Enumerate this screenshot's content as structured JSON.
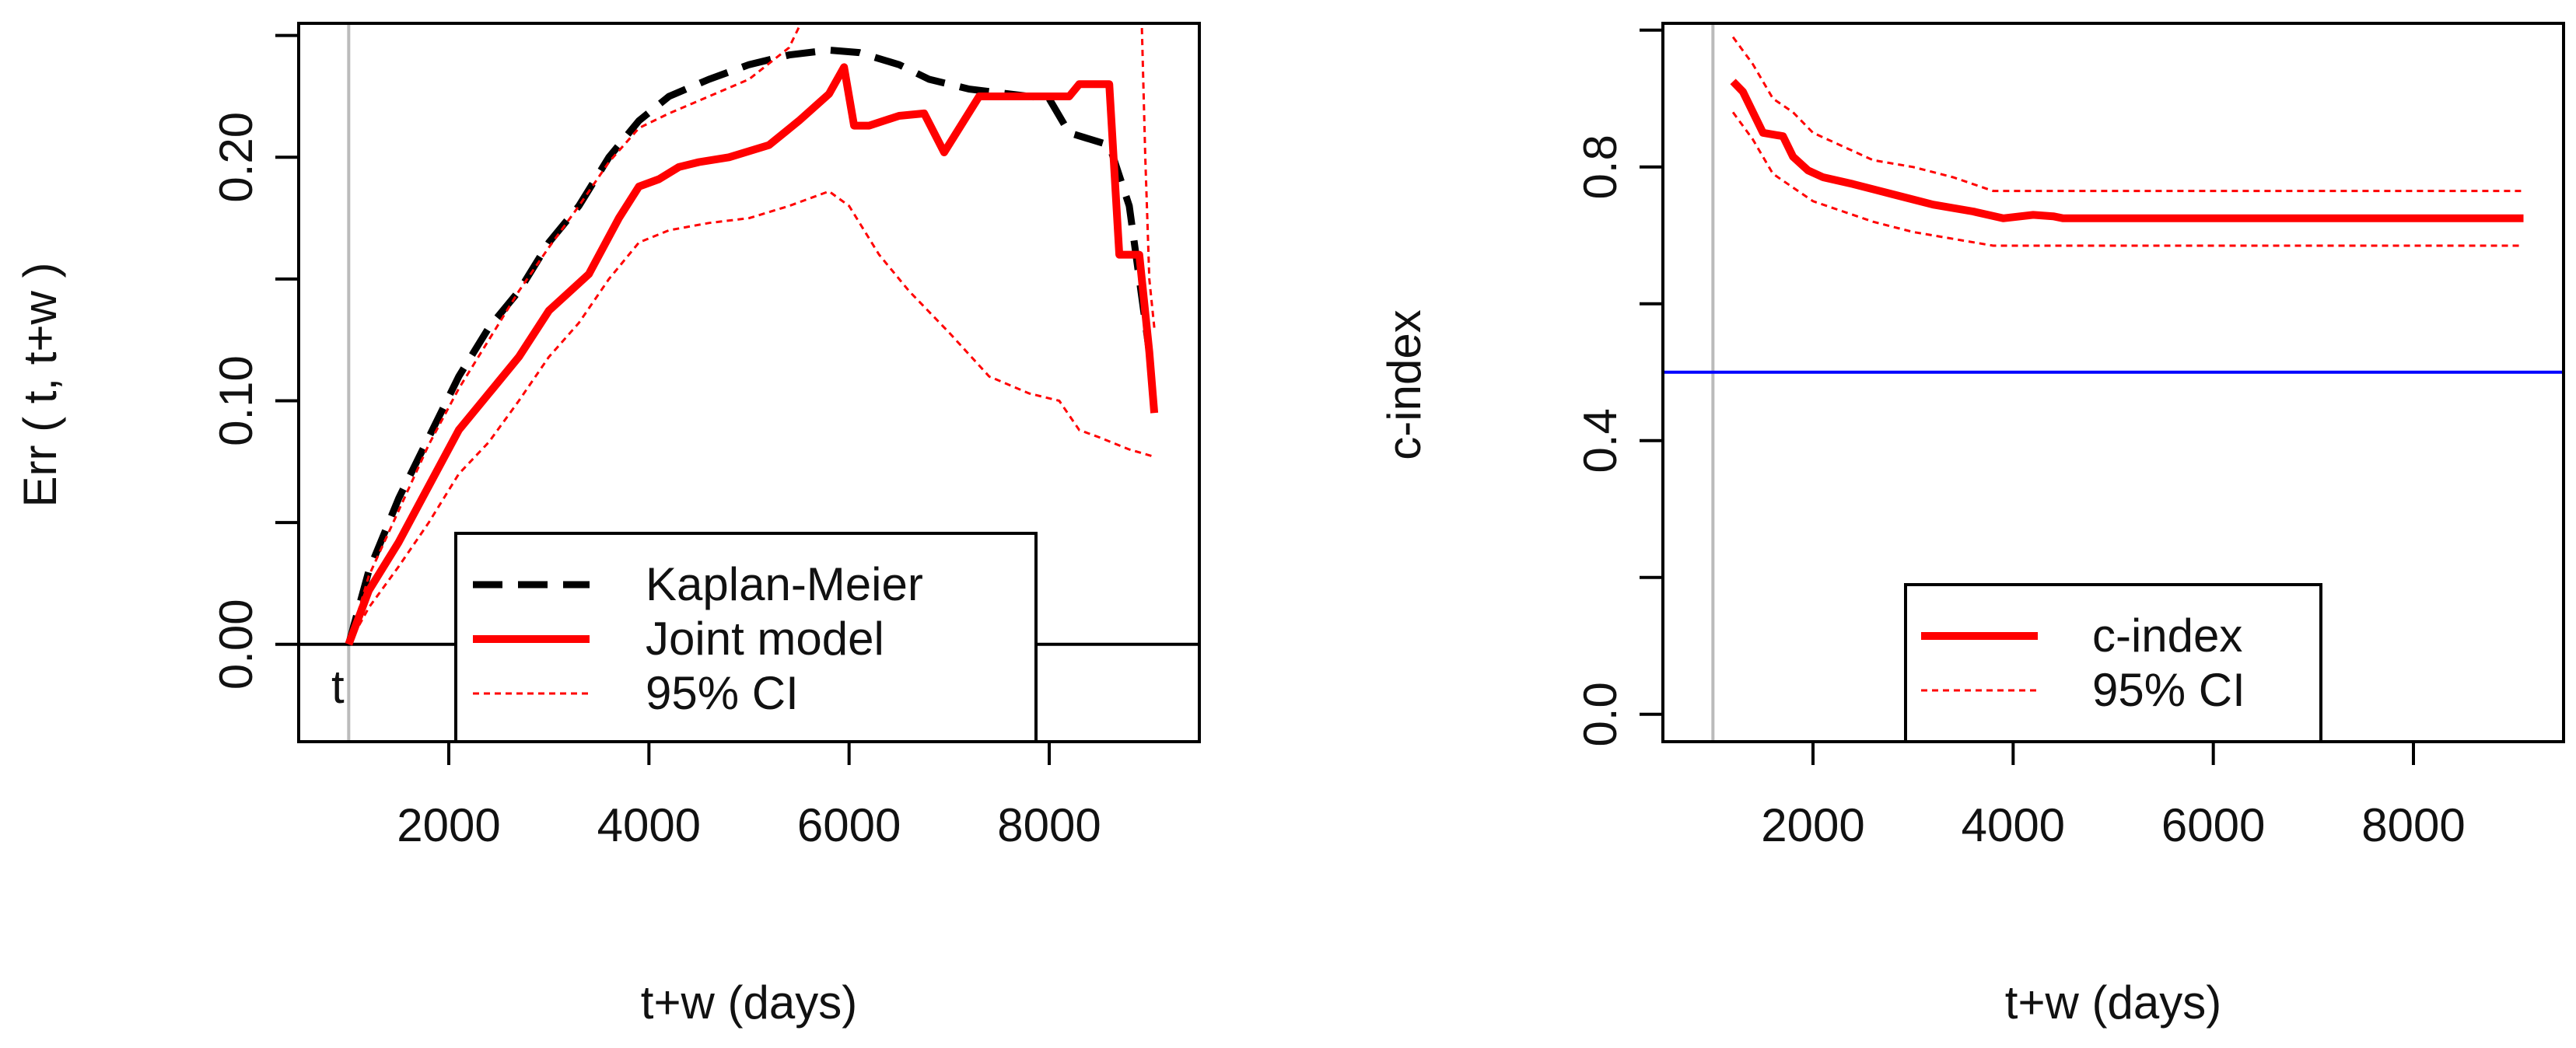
{
  "colors": {
    "km": "#000000",
    "joint": "#ff0000",
    "ci": "#ff0000",
    "ref": "#0000ff",
    "vline": "#bbbbbb",
    "axis": "#000000"
  },
  "chart_data": [
    {
      "type": "line",
      "title": "",
      "xlabel": "t+w (days)",
      "ylabel": "Err ( t, t+w )",
      "xlim": [
        500,
        9500
      ],
      "ylim": [
        -0.04,
        0.255
      ],
      "xticks": [
        2000,
        4000,
        6000,
        8000
      ],
      "xtick_labels": [
        "2000",
        "4000",
        "6000",
        "8000"
      ],
      "yticks": [
        0.0,
        0.05,
        0.1,
        0.15,
        0.2,
        0.25
      ],
      "ytick_labels": [
        "0.00",
        "",
        "0.10",
        "",
        "0.20",
        ""
      ],
      "vline_x": 1000,
      "hline_y": 0,
      "point_label": {
        "x": 1000,
        "y": 0.0,
        "text": "t"
      },
      "legend_position": "bottom-center",
      "series": [
        {
          "name": "Kaplan-Meier",
          "style": "dashed-black",
          "x": [
            1000,
            1200,
            1500,
            1800,
            2100,
            2400,
            2700,
            3000,
            3300,
            3600,
            3900,
            4200,
            4600,
            5000,
            5400,
            5800,
            6100,
            6500,
            6800,
            7200,
            7600,
            8000,
            8200,
            8600,
            8800,
            9000
          ],
          "y": [
            0.0,
            0.03,
            0.06,
            0.085,
            0.11,
            0.13,
            0.145,
            0.165,
            0.18,
            0.2,
            0.215,
            0.225,
            0.232,
            0.238,
            0.242,
            0.244,
            0.243,
            0.238,
            0.232,
            0.228,
            0.226,
            0.224,
            0.21,
            0.205,
            0.18,
            0.12
          ]
        },
        {
          "name": "Joint model",
          "style": "solid-red-thick",
          "x": [
            1000,
            1200,
            1500,
            1800,
            2100,
            2400,
            2700,
            3000,
            3400,
            3700,
            3900,
            4100,
            4300,
            4500,
            4800,
            5200,
            5500,
            5800,
            5950,
            6050,
            6200,
            6500,
            6750,
            6950,
            7300,
            7600,
            8000,
            8200,
            8300,
            8600,
            8700,
            8900,
            9000,
            9050
          ],
          "y": [
            0.0,
            0.022,
            0.042,
            0.065,
            0.088,
            0.103,
            0.118,
            0.137,
            0.152,
            0.175,
            0.188,
            0.191,
            0.196,
            0.198,
            0.2,
            0.205,
            0.215,
            0.226,
            0.237,
            0.213,
            0.213,
            0.217,
            0.218,
            0.202,
            0.225,
            0.225,
            0.225,
            0.225,
            0.23,
            0.23,
            0.16,
            0.16,
            0.12,
            0.095
          ]
        },
        {
          "name": "95% CI",
          "style": "dotted-red-thin",
          "upper_x": [
            1000,
            1200,
            1500,
            1800,
            2100,
            2400,
            2700,
            3000,
            3300,
            3600,
            3900,
            4200,
            4600,
            5000,
            5400,
            5600
          ],
          "upper_y": [
            0.0,
            0.028,
            0.055,
            0.082,
            0.105,
            0.125,
            0.145,
            0.163,
            0.18,
            0.198,
            0.212,
            0.218,
            0.225,
            0.232,
            0.245,
            0.262
          ],
          "upper2_x": [
            8920,
            8960,
            9000,
            9050
          ],
          "upper2_y": [
            0.262,
            0.2,
            0.15,
            0.13
          ],
          "lower_x": [
            1000,
            1200,
            1500,
            1800,
            2100,
            2400,
            2700,
            3000,
            3300,
            3600,
            3900,
            4200,
            4600,
            5000,
            5400,
            5800,
            6000,
            6300,
            6600,
            7000,
            7400,
            7800,
            8100,
            8300,
            8500,
            8800,
            9050
          ],
          "lower_y": [
            0.0,
            0.015,
            0.032,
            0.05,
            0.07,
            0.083,
            0.1,
            0.118,
            0.132,
            0.15,
            0.165,
            0.17,
            0.173,
            0.175,
            0.18,
            0.186,
            0.18,
            0.16,
            0.145,
            0.128,
            0.11,
            0.103,
            0.1,
            0.088,
            0.085,
            0.08,
            0.077
          ]
        }
      ]
    },
    {
      "type": "line",
      "title": "",
      "xlabel": "t+w (days)",
      "ylabel": "c-index",
      "xlim": [
        500,
        9500
      ],
      "ylim": [
        -0.04,
        1.01
      ],
      "xticks": [
        2000,
        4000,
        6000,
        8000
      ],
      "xtick_labels": [
        "2000",
        "4000",
        "6000",
        "8000"
      ],
      "yticks": [
        0.0,
        0.2,
        0.4,
        0.6,
        0.8,
        1.0
      ],
      "ytick_labels": [
        "0.0",
        "",
        "0.4",
        "",
        "0.8",
        ""
      ],
      "vline_x": 1000,
      "hline_y": 0.5,
      "legend_position": "bottom-center",
      "series": [
        {
          "name": "c-index",
          "style": "solid-red-thick",
          "x": [
            1200,
            1300,
            1400,
            1500,
            1700,
            1800,
            1950,
            2100,
            2400,
            2800,
            3200,
            3600,
            3900,
            4200,
            4400,
            4500,
            5000,
            6000,
            7000,
            8000,
            9100
          ],
          "y": [
            0.925,
            0.91,
            0.88,
            0.85,
            0.845,
            0.815,
            0.795,
            0.785,
            0.775,
            0.76,
            0.745,
            0.735,
            0.725,
            0.73,
            0.728,
            0.725,
            0.725,
            0.725,
            0.725,
            0.725,
            0.725
          ]
        },
        {
          "name": "95% CI",
          "style": "dotted-red-thin",
          "upper_x": [
            1200,
            1400,
            1600,
            1800,
            2000,
            2300,
            2600,
            3000,
            3400,
            3800,
            4200,
            5000,
            6000,
            7000,
            8000,
            9100
          ],
          "upper_y": [
            0.99,
            0.95,
            0.9,
            0.88,
            0.85,
            0.83,
            0.81,
            0.8,
            0.785,
            0.765,
            0.765,
            0.765,
            0.765,
            0.765,
            0.765,
            0.765
          ],
          "lower_x": [
            1200,
            1400,
            1600,
            1800,
            2000,
            2300,
            2600,
            3000,
            3400,
            3800,
            4200,
            5000,
            6000,
            7000,
            8000,
            9100
          ],
          "lower_y": [
            0.88,
            0.84,
            0.79,
            0.77,
            0.75,
            0.735,
            0.72,
            0.705,
            0.695,
            0.685,
            0.685,
            0.685,
            0.685,
            0.685,
            0.685,
            0.685
          ]
        }
      ]
    }
  ]
}
